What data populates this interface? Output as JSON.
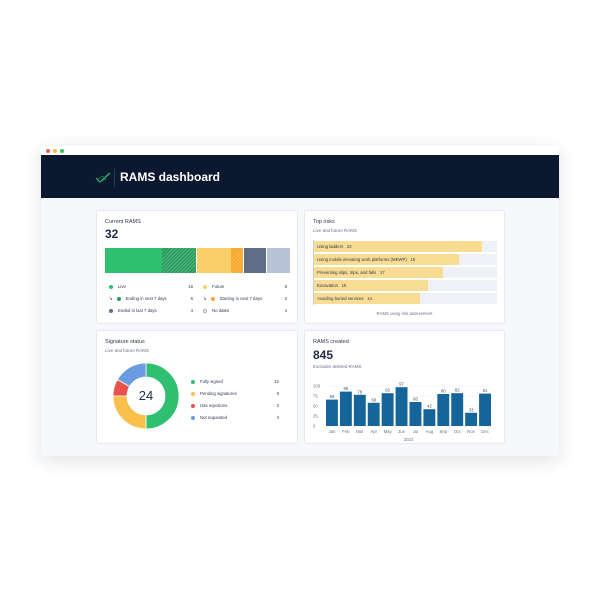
{
  "header": {
    "title": "RAMS dashboard",
    "logo": "checkmark-logo-icon"
  },
  "colors": {
    "header": "#0b1830",
    "live": "#2fbf71",
    "ending": "#239a5a",
    "future": "#f8cf68",
    "starting": "#f5a623",
    "ended": "#606d87",
    "no_dates": "#b7c2d6",
    "risk": "#f8dc92",
    "bar": "#16659a",
    "signed": "#2fbf71",
    "pending": "#f9c04c",
    "rejected": "#e8534f",
    "not_requested": "#6b9be0"
  },
  "current_rams": {
    "title": "Current RAMS",
    "total": "32",
    "segments": [
      {
        "key": "live",
        "value": 16,
        "hatched": 6
      },
      {
        "key": "future",
        "value": 8,
        "hatched": 2
      },
      {
        "key": "ended",
        "value": 4
      },
      {
        "key": "no_dates",
        "value": 4
      }
    ],
    "legend": [
      {
        "label": "Live",
        "value": "16",
        "color": "#2fbf71"
      },
      {
        "label": "Ending in next 7 days",
        "value": "6",
        "color": "#239a5a",
        "sub": true
      },
      {
        "label": "Ended in last 7 days",
        "value": "4",
        "color": "#606d87"
      },
      {
        "label": "Future",
        "value": "8",
        "color": "#f8cf68"
      },
      {
        "label": "Starting in next 7 days",
        "value": "2",
        "color": "#f5a623",
        "sub": true
      },
      {
        "label": "No dates",
        "value": "4",
        "color": "#ffffff"
      }
    ]
  },
  "top_risks": {
    "title": "Top risks",
    "subtitle": "Live and future RAMS",
    "footer": "RAMS using risk assessment",
    "max": 24,
    "items": [
      {
        "label": "Using ladders",
        "value": "22"
      },
      {
        "label": "Using mobile elevating work platforms (MEWP)",
        "value": "19"
      },
      {
        "label": "Preventing slips, trips, and falls",
        "value": "17"
      },
      {
        "label": "Excavation",
        "value": "15"
      },
      {
        "label": "Avoiding buried services",
        "value": "14"
      }
    ]
  },
  "signature_status": {
    "title": "Signature status",
    "subtitle": "Live and future RAMS",
    "total": "24",
    "items": [
      {
        "label": "Fully signed",
        "value": "12",
        "color": "#2fbf71"
      },
      {
        "label": "Pending signatures",
        "value": "6",
        "color": "#f9c04c"
      },
      {
        "label": "Has rejections",
        "value": "2",
        "color": "#e8534f"
      },
      {
        "label": "Not requested",
        "value": "4",
        "color": "#6b9be0"
      }
    ]
  },
  "rams_created": {
    "title": "RAMS created",
    "total": "845",
    "subtitle": "Excludes deleted RAMS",
    "chart_data": {
      "type": "bar",
      "categories": [
        "Jan",
        "Feb",
        "Mar",
        "Apr",
        "May",
        "Jun",
        "Jul",
        "Aug",
        "Sep",
        "Oct",
        "Nov",
        "Dec"
      ],
      "values": [
        66,
        86,
        78,
        58,
        82,
        97,
        60,
        42,
        80,
        82,
        33,
        81
      ],
      "xlabel": "2023",
      "ylim": [
        0,
        100
      ],
      "yticks": [
        "0",
        "25",
        "50",
        "75",
        "100"
      ],
      "grid": true
    }
  }
}
